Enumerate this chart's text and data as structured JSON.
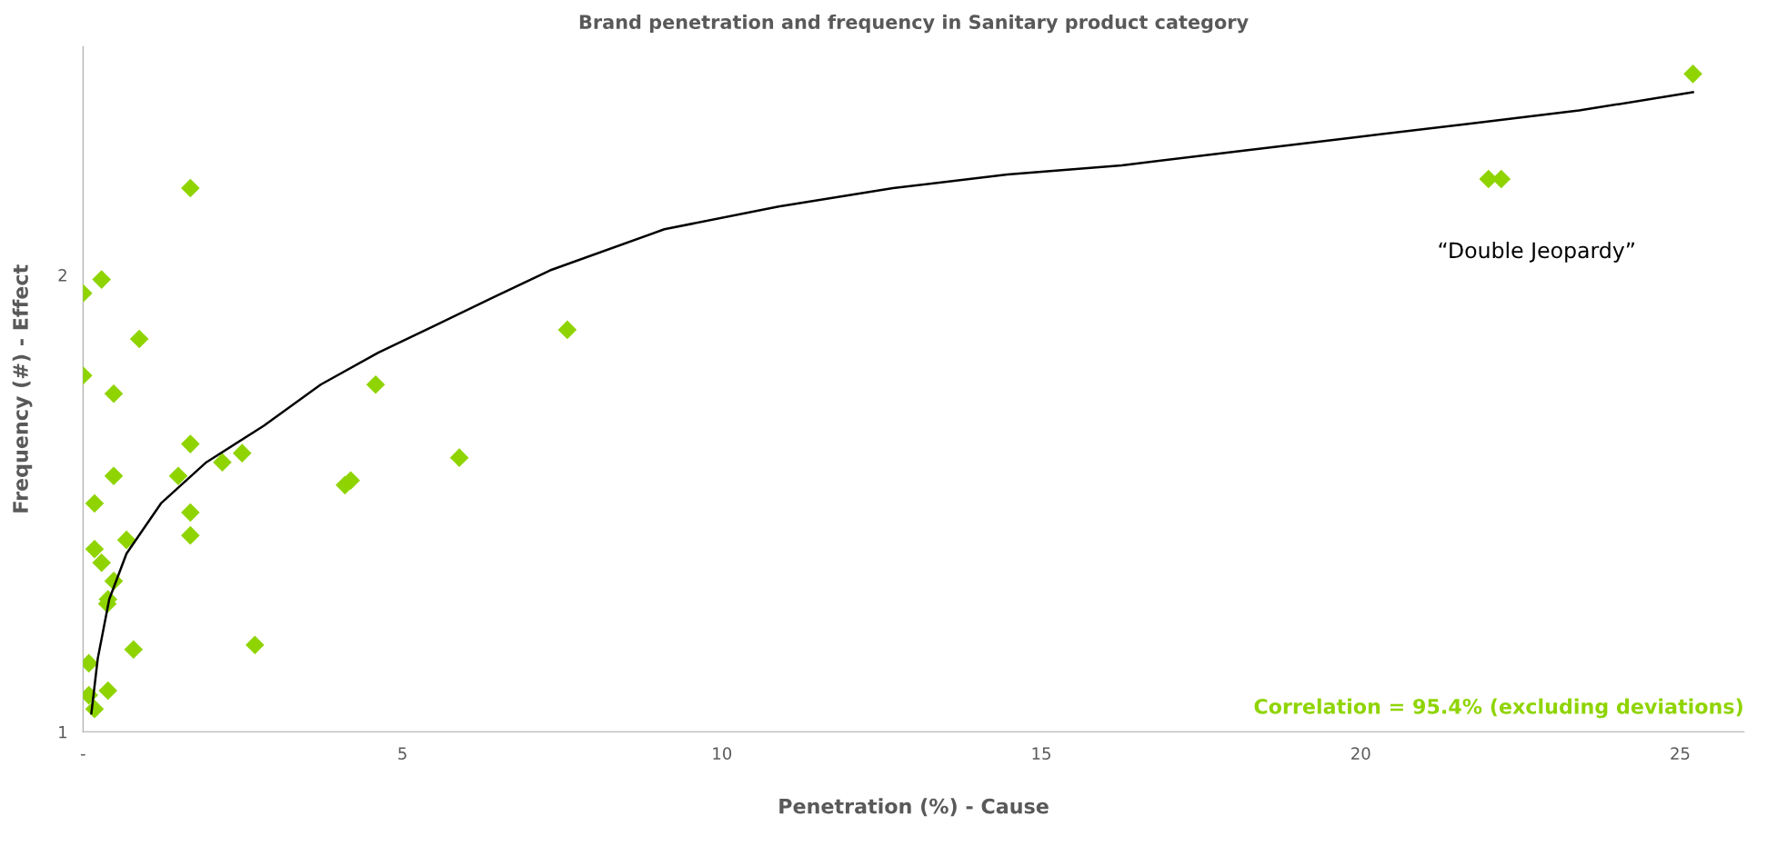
{
  "chart_data": {
    "type": "scatter",
    "title": "Brand penetration and frequency in Sanitary product category",
    "xlabel": "Penetration (%) - Cause",
    "ylabel": "Frequency (#) - Effect",
    "xlim": [
      0,
      26
    ],
    "ylim": [
      1,
      2.5
    ],
    "xticks": [
      {
        "value": 0,
        "label": "-"
      },
      5,
      10,
      15,
      20,
      25
    ],
    "yticks": [
      1,
      2
    ],
    "grid": false,
    "legend": false,
    "marker": "diamond",
    "annotations": [
      "“Double Jeopardy”",
      "Correlation = 95.4% (excluding deviations)"
    ],
    "series": [
      {
        "color": "#8fd400",
        "x": [
          25.2,
          22.0,
          22.2,
          1.68,
          0.29,
          0,
          0.88,
          7.58,
          0,
          0.48,
          4.58,
          1.68,
          2.49,
          2.18,
          5.89,
          1.49,
          0.48,
          4.1,
          4.19,
          0.18,
          1.68,
          1.68,
          0.68,
          0.18,
          0.29,
          0.48,
          0.39,
          0.38,
          0.79,
          2.69,
          0.09,
          0.09,
          0.39,
          0.18
        ],
        "values": [
          2.44,
          2.21,
          2.21,
          2.19,
          1.99,
          1.96,
          1.86,
          1.88,
          1.78,
          1.74,
          1.76,
          1.63,
          1.61,
          1.59,
          1.6,
          1.56,
          1.56,
          1.54,
          1.55,
          1.5,
          1.48,
          1.43,
          1.42,
          1.4,
          1.37,
          1.33,
          1.29,
          1.28,
          1.18,
          1.19,
          1.15,
          1.08,
          1.09,
          1.05
        ]
      },
      {
        "type": "line",
        "color": "#000000",
        "line_style": "solid",
        "marker": "none",
        "x": [
          0.13,
          0.23,
          0.41,
          0.68,
          1.22,
          1.93,
          2.83,
          3.72,
          4.62,
          5.52,
          6.41,
          7.31,
          9.1,
          10.89,
          12.68,
          14.47,
          16.26,
          18.05,
          19.84,
          21.63,
          23.42,
          25.2
        ],
        "values": [
          1.04,
          1.16,
          1.29,
          1.39,
          1.5,
          1.59,
          1.67,
          1.76,
          1.83,
          1.89,
          1.95,
          2.01,
          2.1,
          2.15,
          2.19,
          2.22,
          2.24,
          2.27,
          2.3,
          2.33,
          2.36,
          2.4
        ]
      }
    ]
  }
}
